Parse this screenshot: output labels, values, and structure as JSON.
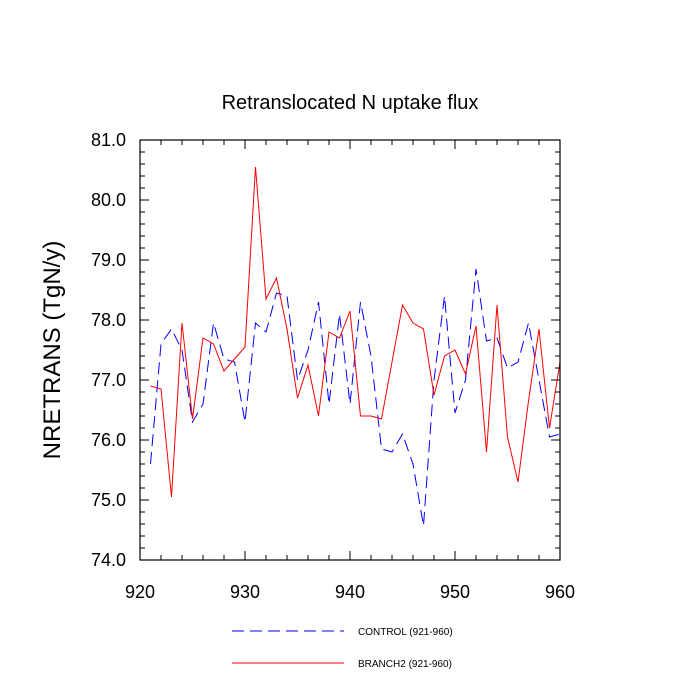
{
  "chart_data": {
    "type": "line",
    "title": "Retranslocated N uptake flux",
    "xlabel": "",
    "ylabel": "NRETRANS  (TgN/y)",
    "xlim": [
      920,
      960
    ],
    "ylim": [
      74.0,
      81.0
    ],
    "x_ticks": [
      "920",
      "930",
      "940",
      "950",
      "960"
    ],
    "y_ticks": [
      "74.0",
      "75.0",
      "76.0",
      "77.0",
      "78.0",
      "79.0",
      "80.0",
      "81.0"
    ],
    "grid": false,
    "legend_position": "bottom-center",
    "x": [
      921,
      922,
      923,
      924,
      925,
      926,
      927,
      928,
      929,
      930,
      931,
      932,
      933,
      934,
      935,
      936,
      937,
      938,
      939,
      940,
      941,
      942,
      943,
      944,
      945,
      946,
      947,
      948,
      949,
      950,
      951,
      952,
      953,
      954,
      955,
      956,
      957,
      958,
      959,
      960
    ],
    "series": [
      {
        "name": "CONTROL (921-960)",
        "color": "#0000ff",
        "dash": "dashed",
        "values": [
          75.6,
          77.6,
          77.85,
          77.5,
          76.3,
          76.6,
          77.95,
          77.35,
          77.3,
          76.3,
          77.95,
          77.8,
          78.45,
          78.4,
          77.0,
          77.5,
          78.3,
          76.6,
          78.1,
          76.6,
          78.3,
          77.4,
          75.85,
          75.8,
          76.1,
          75.6,
          74.57,
          77.0,
          78.4,
          76.45,
          77.0,
          78.85,
          77.65,
          77.7,
          77.2,
          77.3,
          77.95,
          77.0,
          76.05,
          76.1
        ]
      },
      {
        "name": "BRANCH2 (921-960)",
        "color": "#ff0000",
        "dash": "solid",
        "values": [
          76.9,
          76.85,
          75.05,
          77.95,
          76.35,
          77.7,
          77.6,
          77.15,
          77.35,
          77.55,
          80.55,
          78.35,
          78.7,
          77.85,
          76.7,
          77.25,
          76.4,
          77.8,
          77.7,
          78.15,
          76.4,
          76.4,
          76.35,
          77.3,
          78.25,
          77.95,
          77.85,
          76.75,
          77.4,
          77.5,
          77.1,
          77.9,
          75.8,
          78.25,
          76.05,
          75.3,
          76.65,
          77.85,
          76.2,
          77.3
        ]
      }
    ]
  }
}
